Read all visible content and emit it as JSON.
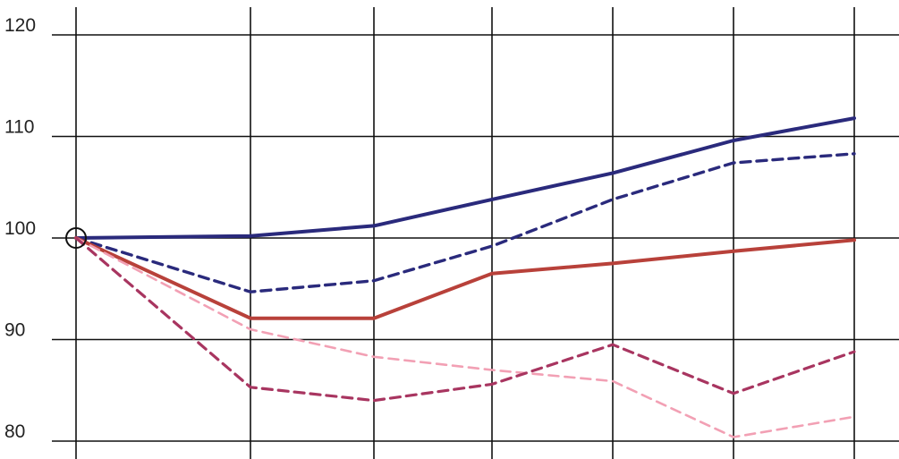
{
  "chart_data": {
    "type": "line",
    "title": "",
    "xlabel": "",
    "ylabel": "",
    "x": [
      0,
      1,
      2,
      3,
      4,
      5,
      6
    ],
    "ylim": [
      78,
      121
    ],
    "yticks": [
      80,
      90,
      100,
      110,
      120
    ],
    "yticklabels": [
      "80",
      "90",
      "100",
      "110",
      "120"
    ],
    "grid": true,
    "legend": "none",
    "start_marker": "open-circle",
    "series": [
      {
        "values": [
          100,
          100.2,
          101.2,
          103.8,
          106.4,
          109.6,
          111.8
        ],
        "color": "#2a2a7c",
        "dash": "solid",
        "width": 4
      },
      {
        "values": [
          100,
          94.7,
          95.8,
          99.2,
          103.8,
          107.4,
          108.3
        ],
        "color": "#2a2a7c",
        "dash": "dashed",
        "width": 3.4
      },
      {
        "values": [
          100,
          92.1,
          92.1,
          96.5,
          97.5,
          98.7,
          99.8
        ],
        "color": "#b8413a",
        "dash": "solid",
        "width": 4
      },
      {
        "values": [
          100,
          91.0,
          88.3,
          87.0,
          85.9,
          80.4,
          82.4
        ],
        "color": "#f2a0b4",
        "dash": "dashed",
        "width": 2.6
      },
      {
        "values": [
          100,
          85.3,
          84.0,
          85.6,
          89.5,
          84.7,
          88.8
        ],
        "color": "#a83560",
        "dash": "dashed",
        "width": 3.2
      }
    ]
  }
}
